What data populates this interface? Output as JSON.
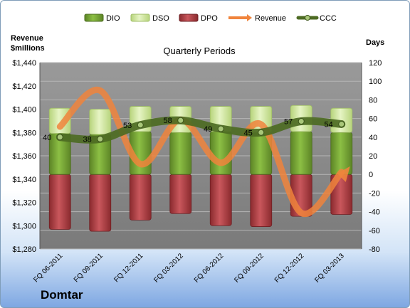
{
  "company": "Domtar",
  "chart_data": {
    "type": "bar",
    "title": "Quarterly Periods",
    "left_axis_label": [
      "Revenue",
      "$millions"
    ],
    "right_axis_label": "Days",
    "categories": [
      "FQ 06-2011",
      "FQ 09-2011",
      "FQ 12-2011",
      "FQ 03-2012",
      "FQ 06-2012",
      "FQ 09-2012",
      "FQ 12-2012",
      "FQ 03-2013"
    ],
    "left_ylim": [
      1280,
      1440
    ],
    "left_ticks": [
      "$1,440",
      "$1,420",
      "$1,400",
      "$1,380",
      "$1,360",
      "$1,340",
      "$1,320",
      "$1,300",
      "$1,280"
    ],
    "right_ylim": [
      -80,
      120
    ],
    "right_ticks": [
      "120",
      "100",
      "80",
      "60",
      "40",
      "20",
      "0",
      "-20",
      "-40",
      "-60",
      "-80"
    ],
    "legend": [
      "DIO",
      "DSO",
      "DPO",
      "Revenue",
      "CCC"
    ],
    "colors": {
      "DIO": "#6e9a2e",
      "DSO": "#cfe69e",
      "DPO": "#a8343a",
      "Revenue": "#f0843c",
      "CCC": "#4d6b23",
      "plot_bg": "#8c8c8c"
    },
    "series": [
      {
        "name": "DIO",
        "values": [
          44,
          43,
          46,
          45,
          46,
          45,
          46,
          45
        ]
      },
      {
        "name": "DSO",
        "values": [
          27,
          27,
          27,
          28,
          27,
          28,
          28,
          26
        ]
      },
      {
        "name": "DPO",
        "values": [
          -59,
          -61,
          -49,
          -42,
          -55,
          -56,
          -45,
          -43
        ]
      },
      {
        "name": "Revenue",
        "values": [
          1385,
          1416,
          1353,
          1391,
          1354,
          1387,
          1311,
          1346
        ]
      },
      {
        "name": "CCC",
        "values": [
          40,
          38,
          53,
          58,
          49,
          45,
          57,
          54
        ]
      }
    ],
    "data_labels": [
      "40",
      "38",
      "53",
      "58",
      "49",
      "45",
      "57",
      "54"
    ]
  }
}
